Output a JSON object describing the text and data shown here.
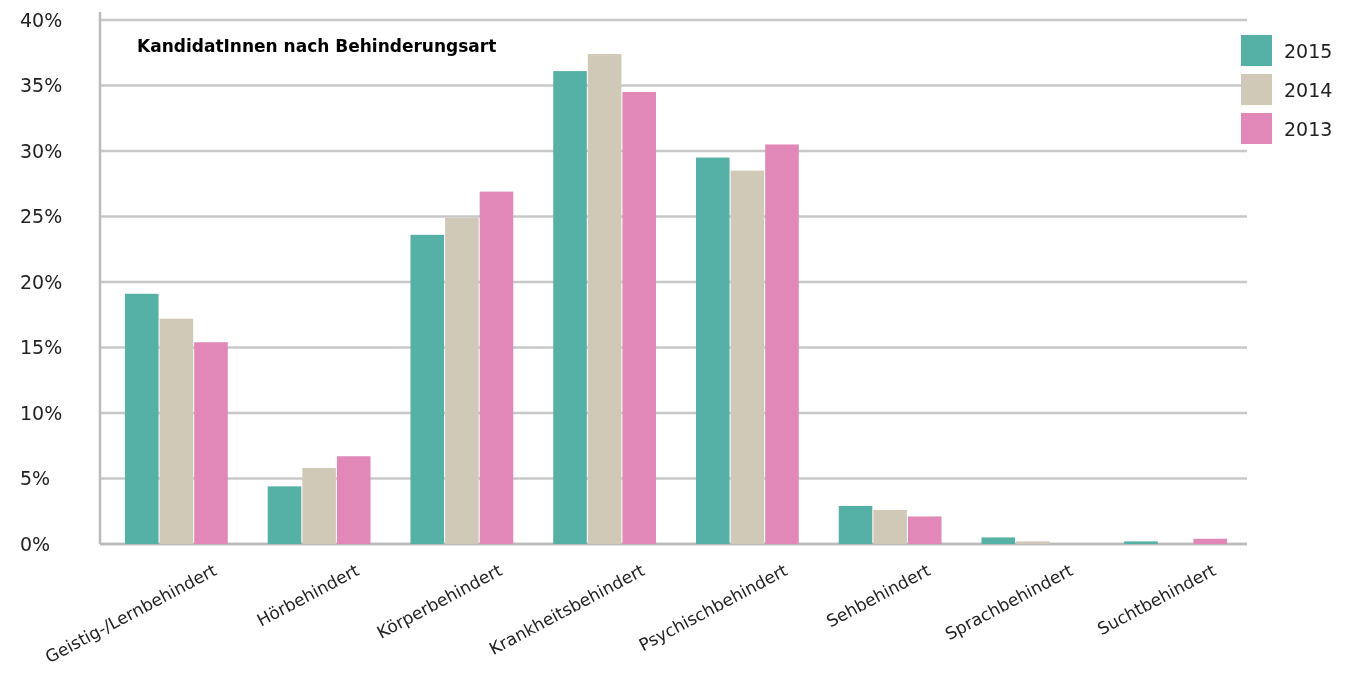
{
  "chart_data": {
    "type": "bar",
    "title": "KandidatInnen nach Behinderungsart",
    "categories": [
      "Geistig-/Lernbehindert",
      "Hörbehindert",
      "Körperbehindert",
      "Krankheitsbehindert",
      "Psychischbehindert",
      "Sehbehindert",
      "Sprachbehindert",
      "Suchtbehindert"
    ],
    "series": [
      {
        "name": "2015",
        "color": "#55b0a5",
        "values": [
          19.1,
          4.4,
          23.6,
          36.1,
          29.5,
          2.9,
          0.5,
          0.2
        ]
      },
      {
        "name": "2014",
        "color": "#d1c9b8",
        "values": [
          17.2,
          5.8,
          24.9,
          37.4,
          28.5,
          2.6,
          0.2,
          null
        ]
      },
      {
        "name": "2013",
        "color": "#e288b8",
        "values": [
          15.4,
          6.7,
          26.9,
          34.5,
          30.5,
          2.1,
          0,
          0.4
        ]
      }
    ],
    "ylim": [
      0,
      40
    ],
    "yticks": [
      {
        "value": 0,
        "label": "0%"
      },
      {
        "value": 5,
        "label": "5%"
      },
      {
        "value": 10,
        "label": "10%"
      },
      {
        "value": 15,
        "label": "15%"
      },
      {
        "value": 20,
        "label": "20%"
      },
      {
        "value": 25,
        "label": "25%"
      },
      {
        "value": 30,
        "label": "30%"
      },
      {
        "value": 35,
        "label": "35%"
      },
      {
        "value": 40,
        "label": "40%"
      }
    ],
    "grid": "y",
    "legend": "top right"
  }
}
